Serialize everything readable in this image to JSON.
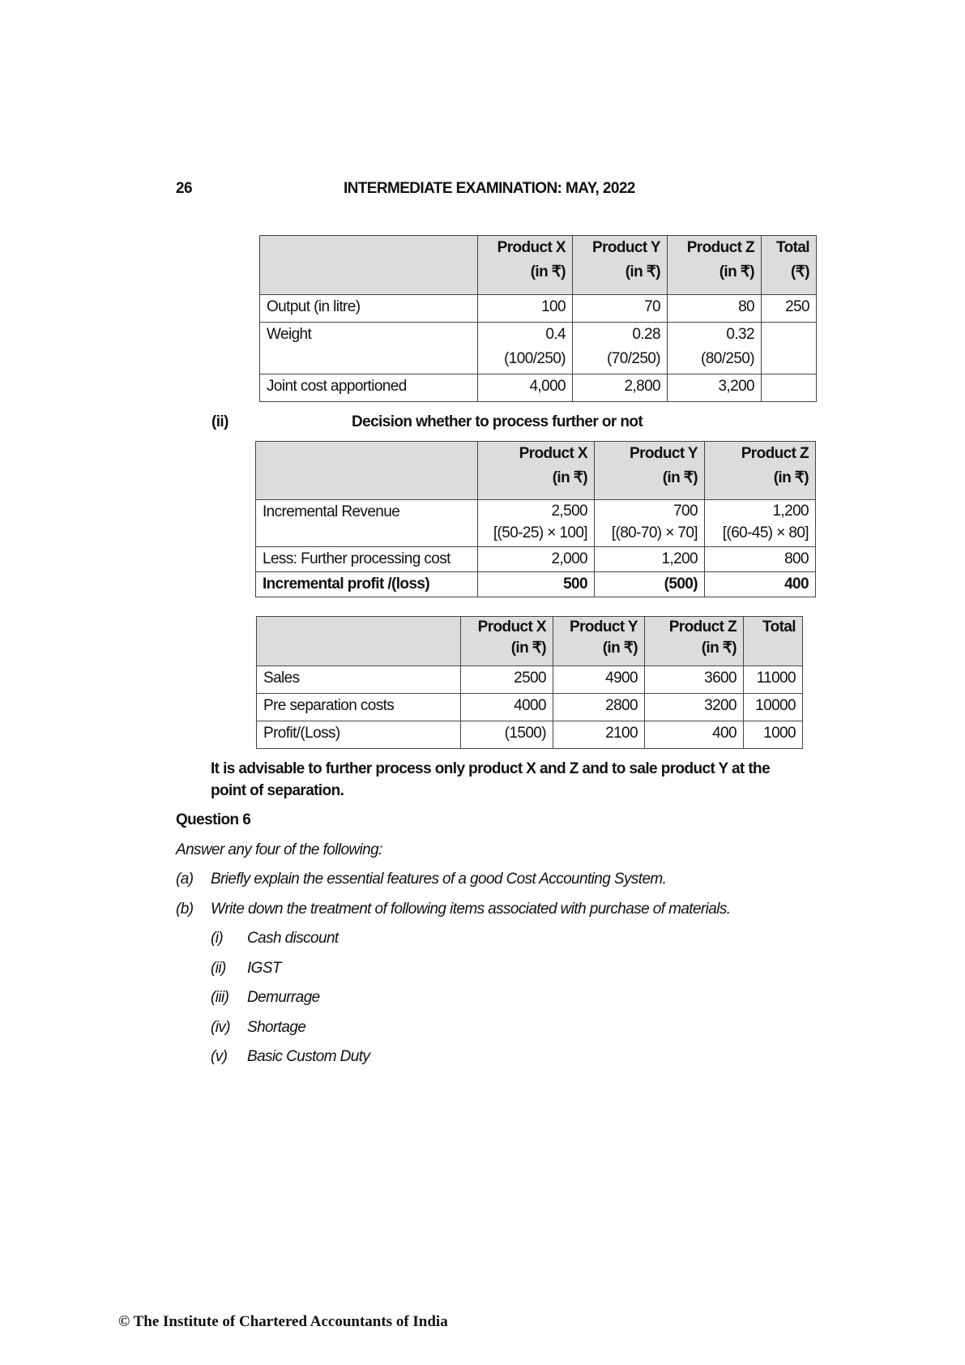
{
  "header": {
    "page_number": "26",
    "title": "INTERMEDIATE EXAMINATION: MAY, 2022"
  },
  "table1": {
    "headers": [
      [
        "",
        ""
      ],
      [
        "Product X",
        "(in ₹)"
      ],
      [
        "Product Y",
        "(in ₹)"
      ],
      [
        "Product Z",
        "(in ₹)"
      ],
      [
        "Total",
        "(₹)"
      ]
    ],
    "rows": [
      [
        "Output (in litre)",
        [
          "100"
        ],
        [
          "70"
        ],
        [
          "80"
        ],
        [
          "250"
        ]
      ],
      [
        "Weight",
        [
          "0.4",
          "(100/250)"
        ],
        [
          "0.28",
          "(70/250)"
        ],
        [
          "0.32",
          "(80/250)"
        ],
        [
          ""
        ]
      ],
      [
        "Joint cost apportioned",
        [
          "4,000"
        ],
        [
          "2,800"
        ],
        [
          "3,200"
        ],
        [
          ""
        ]
      ]
    ]
  },
  "section_ii": {
    "label": "(ii)",
    "heading": "Decision whether to process further or not"
  },
  "table2": {
    "headers": [
      [
        "",
        ""
      ],
      [
        "Product X",
        "(in ₹)"
      ],
      [
        "Product Y",
        "(in ₹)"
      ],
      [
        "Product Z",
        "(in ₹)"
      ]
    ],
    "rows": [
      [
        "Incremental Revenue",
        [
          "2,500",
          "[(50-25) × 100]"
        ],
        [
          "700",
          "[(80-70) × 70]"
        ],
        [
          "1,200",
          "[(60-45) × 80]"
        ]
      ],
      [
        "Less: Further processing cost",
        [
          "2,000"
        ],
        [
          "1,200"
        ],
        [
          "800"
        ]
      ],
      [
        "Incremental profit /(loss)",
        [
          "500"
        ],
        [
          "(500)"
        ],
        [
          "400"
        ]
      ]
    ]
  },
  "table3": {
    "headers": [
      [
        "",
        ""
      ],
      [
        "Product X",
        "(in ₹)"
      ],
      [
        "Product Y",
        "(in ₹)"
      ],
      [
        "Product Z",
        "(in ₹)"
      ],
      [
        "Total",
        ""
      ]
    ],
    "rows": [
      [
        "Sales",
        "2500",
        "4900",
        "3600",
        "11000"
      ],
      [
        "Pre separation costs",
        "4000",
        "2800",
        "3200",
        "10000"
      ],
      [
        "Profit/(Loss)",
        "(1500)",
        "2100",
        "400",
        "1000"
      ]
    ]
  },
  "conclusion": [
    "It is advisable to further process only product X and Z and to sale product Y at the",
    "point of separation."
  ],
  "question": {
    "title": "Question 6",
    "instruction": "Answer any four of the following:",
    "parts": [
      {
        "label": "(a)",
        "text": "Briefly explain the essential features of a good Cost Accounting System."
      },
      {
        "label": "(b)",
        "text": "Write down the treatment of following items associated with purchase of materials."
      }
    ],
    "subitems": [
      {
        "label": "(i)",
        "text": "Cash discount"
      },
      {
        "label": "(ii)",
        "text": "IGST"
      },
      {
        "label": "(iii)",
        "text": "Demurrage"
      },
      {
        "label": "(iv)",
        "text": "Shortage"
      },
      {
        "label": "(v)",
        "text": "Basic Custom Duty"
      }
    ]
  },
  "footer": "© The Institute of Chartered Accountants of India"
}
